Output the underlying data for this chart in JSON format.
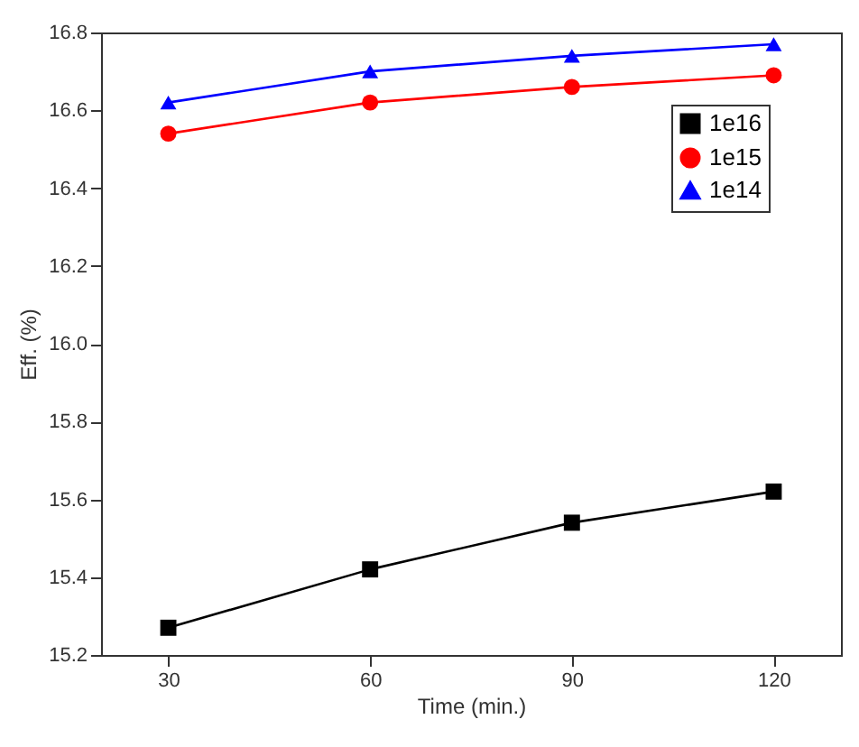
{
  "chart_data": {
    "type": "line",
    "xlabel": "Time (min.)",
    "ylabel": "Eff. (%)",
    "x": [
      30,
      60,
      90,
      120
    ],
    "series": [
      {
        "name": "1e16",
        "color": "#000000",
        "marker": "square",
        "values": [
          15.27,
          15.42,
          15.54,
          15.62
        ]
      },
      {
        "name": "1e15",
        "color": "#ff0000",
        "marker": "circle",
        "values": [
          16.54,
          16.62,
          16.66,
          16.69
        ]
      },
      {
        "name": "1e14",
        "color": "#0000ff",
        "marker": "triangle",
        "values": [
          16.62,
          16.7,
          16.74,
          16.77
        ]
      }
    ],
    "xlim": [
      20,
      130
    ],
    "xticks": [
      30,
      60,
      90,
      120
    ],
    "ylim": [
      15.2,
      16.8
    ],
    "yticks": [
      15.2,
      15.4,
      15.6,
      15.8,
      {
        "value": 16,
        "label": "16.0"
      },
      16.2,
      16.4,
      16.6,
      16.8
    ],
    "legend": "top right",
    "grid": false,
    "line_style": "solid"
  }
}
